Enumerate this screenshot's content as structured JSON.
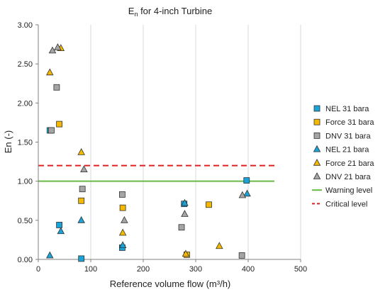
{
  "chart_data": {
    "type": "scatter",
    "title_main": "E",
    "title_sub": "n",
    "title_rest": " for 4-inch Turbine",
    "xlabel": "Reference volume flow (m³/h)",
    "ylabel": "En (-)",
    "xlim": [
      0,
      500
    ],
    "ylim": [
      0,
      3
    ],
    "x_ticks": [
      "0",
      "100",
      "200",
      "300",
      "400",
      "500"
    ],
    "y_ticks": [
      "0.00",
      "0.50",
      "1.00",
      "1.50",
      "2.00",
      "2.50",
      "3.00"
    ],
    "grid": "vertical",
    "legend_position": "right",
    "series": [
      {
        "name": "NEL 31 bara",
        "marker": "square",
        "color": "#1aa3d9",
        "points": [
          [
            22,
            1.65
          ],
          [
            40,
            0.44
          ],
          [
            82,
            0.01
          ],
          [
            160,
            0.15
          ],
          [
            278,
            0.71
          ],
          [
            397,
            1.01
          ]
        ]
      },
      {
        "name": "Force 31 bara",
        "marker": "square",
        "color": "#f5b800",
        "points": [
          [
            40,
            1.73
          ],
          [
            82,
            0.75
          ],
          [
            161,
            0.66
          ],
          [
            283,
            0.06
          ],
          [
            325,
            0.7
          ]
        ]
      },
      {
        "name": "DNV 31 bara",
        "marker": "square",
        "color": "#a5a5a5",
        "points": [
          [
            25,
            1.65
          ],
          [
            35,
            2.2
          ],
          [
            84,
            0.9
          ],
          [
            160,
            0.83
          ],
          [
            273,
            0.41
          ],
          [
            388,
            0.05
          ]
        ]
      },
      {
        "name": "NEL 21 bara",
        "marker": "triangle",
        "color": "#1aa3d9",
        "points": [
          [
            22,
            0.05
          ],
          [
            43,
            0.36
          ],
          [
            82,
            0.5
          ],
          [
            161,
            0.18
          ],
          [
            279,
            0.72
          ],
          [
            398,
            0.84
          ]
        ]
      },
      {
        "name": "Force 21 bara",
        "marker": "triangle",
        "color": "#f5b800",
        "points": [
          [
            22,
            2.39
          ],
          [
            43,
            2.7
          ],
          [
            82,
            1.37
          ],
          [
            161,
            0.34
          ],
          [
            281,
            0.07
          ],
          [
            345,
            0.17
          ]
        ]
      },
      {
        "name": "DNV 21 bara",
        "marker": "triangle",
        "color": "#a5a5a5",
        "points": [
          [
            27,
            2.67
          ],
          [
            37,
            2.71
          ],
          [
            87,
            1.15
          ],
          [
            164,
            0.5
          ],
          [
            279,
            0.58
          ],
          [
            389,
            0.82
          ]
        ]
      }
    ],
    "lines": [
      {
        "name": "Warning level",
        "y": 1.0,
        "x_start": 0,
        "x_end": 450,
        "color": "#66bb44",
        "style": "solid"
      },
      {
        "name": "Critical level",
        "y": 1.2,
        "x_start": 0,
        "x_end": 450,
        "color": "#e02020",
        "style": "dashed"
      }
    ]
  }
}
